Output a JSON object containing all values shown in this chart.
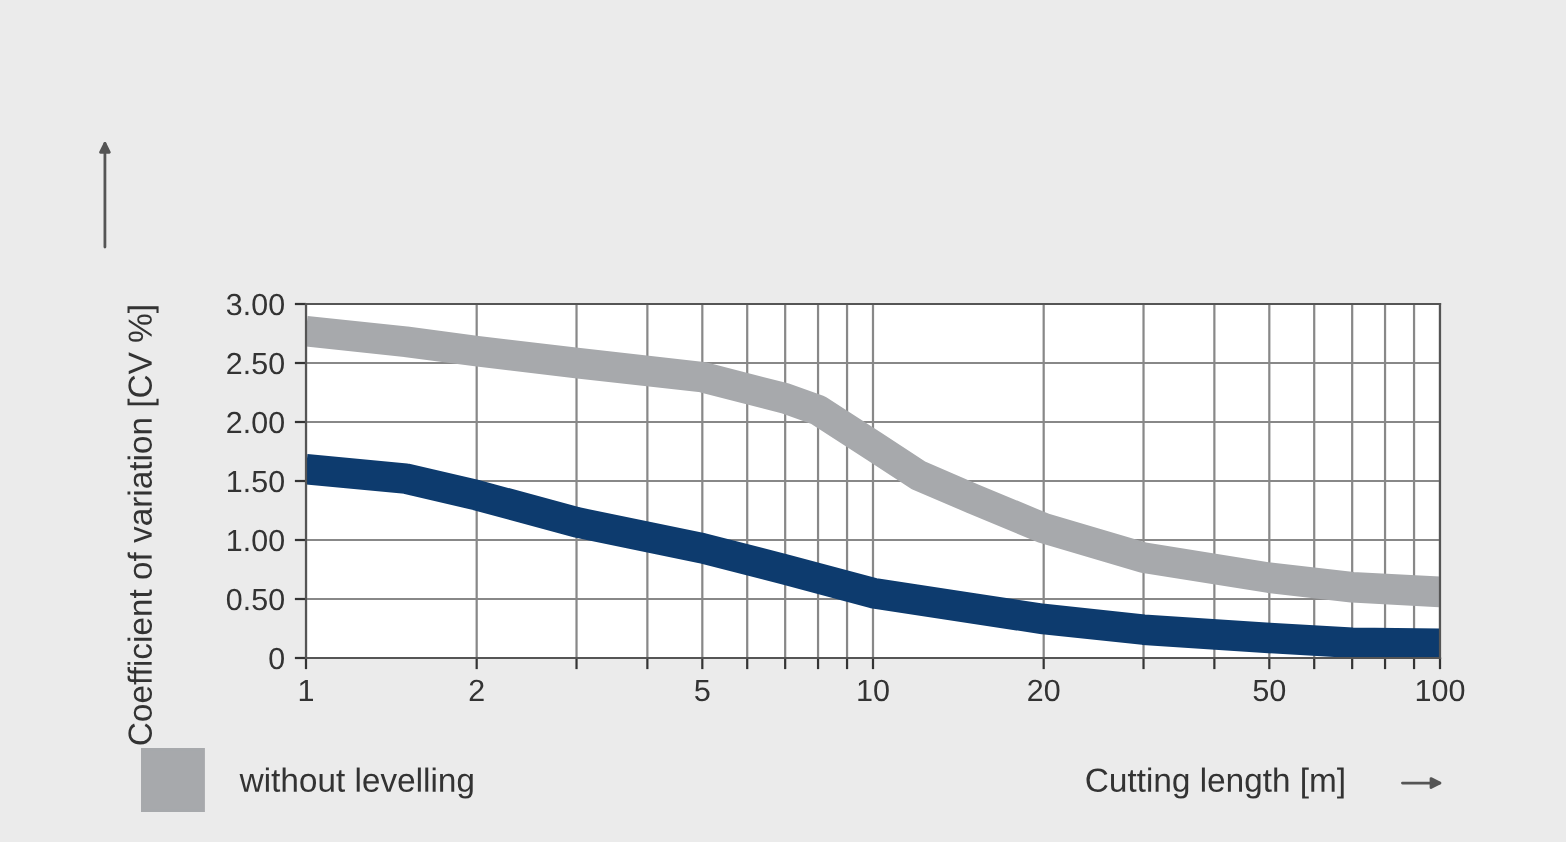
{
  "chart_data": {
    "type": "line",
    "xlabel": "Cutting length [m]",
    "ylabel": "Coefficient of variation [CV %]",
    "log": "x",
    "xlim": [
      1,
      100
    ],
    "ylim": [
      0,
      3
    ],
    "xticks": [
      1,
      2,
      {
        "value": 3,
        "label": null
      },
      {
        "value": 4,
        "label": null
      },
      5,
      {
        "value": 6,
        "label": null
      },
      {
        "value": 7,
        "label": null
      },
      {
        "value": 8,
        "label": null
      },
      {
        "value": 9,
        "label": null
      },
      10,
      20,
      {
        "value": 30,
        "label": null
      },
      {
        "value": 40,
        "label": null
      },
      50,
      {
        "value": 60,
        "label": null
      },
      {
        "value": 70,
        "label": null
      },
      {
        "value": 80,
        "label": null
      },
      {
        "value": 90,
        "label": null
      },
      100
    ],
    "yticks": [
      0,
      {
        "value": 0.5,
        "label": "0.50"
      },
      {
        "value": 1,
        "label": "1.00"
      },
      {
        "value": 1.5,
        "label": "1.50"
      },
      {
        "value": 2,
        "label": "2.00"
      },
      {
        "value": 2.5,
        "label": "2.50"
      },
      {
        "value": 3,
        "label": "3.00"
      }
    ],
    "grid": true,
    "legend": "bottom",
    "line_style": "solid",
    "series": [
      {
        "name": "without levelling",
        "color": "#a7a9ac",
        "x": [
          1,
          1.5,
          2,
          3,
          5,
          7,
          8,
          10,
          12,
          15,
          20,
          30,
          50,
          70,
          100
        ],
        "values": [
          2.77,
          2.68,
          2.6,
          2.5,
          2.38,
          2.2,
          2.1,
          1.8,
          1.55,
          1.35,
          1.1,
          0.85,
          0.68,
          0.6,
          0.56
        ]
      },
      {
        "color": "#0d3b6e",
        "x": [
          1,
          1.5,
          2,
          3,
          5,
          7,
          10,
          15,
          20,
          30,
          50,
          70,
          100
        ],
        "values": [
          1.6,
          1.52,
          1.38,
          1.15,
          0.93,
          0.75,
          0.55,
          0.42,
          0.33,
          0.24,
          0.17,
          0.13,
          0.12
        ]
      }
    ]
  }
}
